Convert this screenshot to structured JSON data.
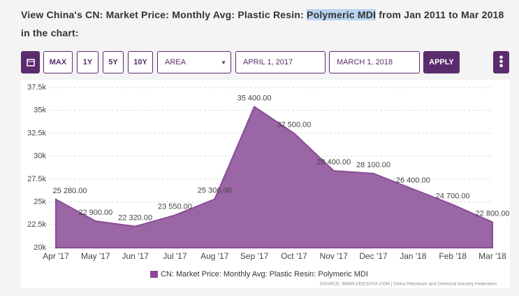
{
  "header": {
    "title_before": "View China's CN: Market Price: Monthly Avg: Plastic Resin: ",
    "title_highlight": "Polymeric MDI",
    "title_after": " from Jan 2011 to Mar 2018 in the chart:"
  },
  "controls": {
    "max": "MAX",
    "one_year": "1Y",
    "five_years": "5Y",
    "ten_years": "10Y",
    "chart_type": "AREA",
    "start_date": "APRIL 1, 2017",
    "end_date": "MARCH 1, 2018",
    "apply": "APPLY"
  },
  "chart_data": {
    "type": "area",
    "categories": [
      "Apr '17",
      "May '17",
      "Jun '17",
      "Jul '17",
      "Aug '17",
      "Sep '17",
      "Oct '17",
      "Nov '17",
      "Dec '17",
      "Jan '18",
      "Feb '18",
      "Mar '18"
    ],
    "series": [
      {
        "name": "CN: Market Price: Monthly Avg: Plastic Resin: Polymeric MDI",
        "color": "#8a4b96",
        "values": [
          25280,
          22900,
          22320,
          23550,
          25300,
          35400,
          32500,
          28400,
          28100,
          26400,
          24700,
          22800
        ],
        "value_labels": [
          "25 280.00",
          "22 900.00",
          "22 320.00",
          "23 550.00",
          "25 300.00",
          "35 400.00",
          "32 500.00",
          "28 400.00",
          "28 100.00",
          "26 400.00",
          "24 700.00",
          "22 800.00"
        ]
      }
    ],
    "ylim": [
      20000,
      37500
    ],
    "yticks": [
      {
        "value": 20000,
        "label": "20k"
      },
      {
        "value": 22500,
        "label": "22.5k"
      },
      {
        "value": 25000,
        "label": "25k"
      },
      {
        "value": 27500,
        "label": "27.5k"
      },
      {
        "value": 30000,
        "label": "30k"
      },
      {
        "value": 32500,
        "label": "32.5k"
      },
      {
        "value": 35000,
        "label": "35k"
      },
      {
        "value": 37500,
        "label": "37.5k"
      }
    ],
    "grid": true,
    "legend": "bottom",
    "source": "SOURCE: WWW.CEICDATA.COM | China Petroleum and Chemical Industry Federation"
  }
}
